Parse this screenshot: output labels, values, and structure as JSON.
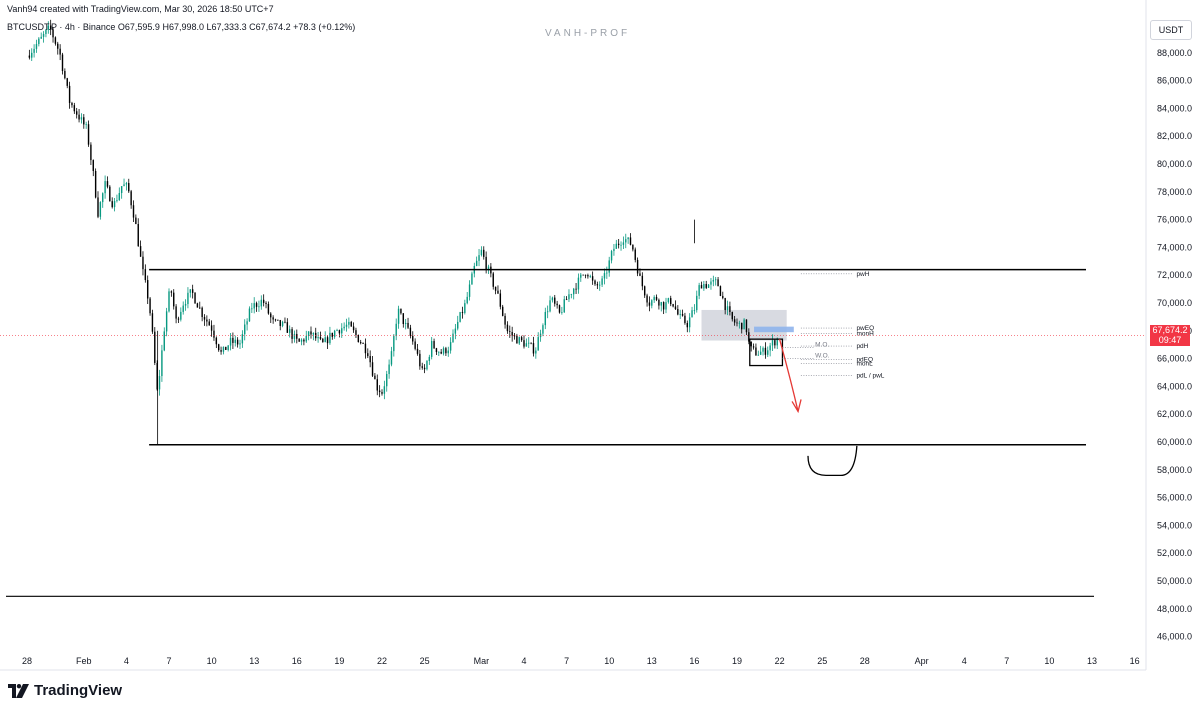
{
  "header": {
    "creator": "Vanh94 created with TradingView.com, Mar 30, 2026 18:50 UTC+7",
    "symbol": "BTCUSDT.P",
    "timeframe": "4h",
    "exchange": "Binance",
    "open": "O67,595.9",
    "high": "H67,998.0",
    "low": "L67,333.3",
    "close": "C67,674.2",
    "change": "+78.3 (+0.12%)"
  },
  "watermark": "VANH-PROF",
  "quote_currency": "USDT",
  "current_price": {
    "value": 67674.2,
    "label": "67,674.2",
    "countdown": "09:47"
  },
  "brand": {
    "name": "TradingView"
  },
  "colors": {
    "up": "#089981",
    "down": "#000000",
    "price_tag": "#f23645",
    "zone_fill": "#d1d4dc",
    "blue_zone": "#8fb4ec",
    "arrow": "#e53935"
  },
  "chart_data": {
    "type": "candlestick",
    "interval": "4h",
    "ylim": [
      44500,
      90000
    ],
    "y_ticks": [
      46000,
      48000,
      50000,
      52000,
      54000,
      56000,
      58000,
      60000,
      62000,
      64000,
      66000,
      68000,
      70000,
      72000,
      74000,
      76000,
      78000,
      80000,
      82000,
      84000,
      86000,
      88000
    ],
    "y_tick_labels": [
      "46,000.0",
      "48,000.0",
      "50,000.0",
      "52,000.0",
      "54,000.0",
      "56,000.0",
      "58,000.0",
      "60,000.0",
      "62,000.0",
      "64,000.0",
      "66,000.0",
      "68,000.0",
      "70,000.0",
      "72,000.0",
      "74,000.0",
      "76,000.0",
      "78,000.0",
      "80,000.0",
      "82,000.0",
      "84,000.0",
      "86,000.0",
      "88,000.0"
    ],
    "x_ticks": [
      {
        "label": "28",
        "day": 0
      },
      {
        "label": "Feb",
        "day": 4
      },
      {
        "label": "4",
        "day": 7
      },
      {
        "label": "7",
        "day": 10
      },
      {
        "label": "10",
        "day": 13
      },
      {
        "label": "13",
        "day": 16
      },
      {
        "label": "16",
        "day": 19
      },
      {
        "label": "19",
        "day": 22
      },
      {
        "label": "22",
        "day": 25
      },
      {
        "label": "25",
        "day": 28
      },
      {
        "label": "Mar",
        "day": 32
      },
      {
        "label": "4",
        "day": 35
      },
      {
        "label": "7",
        "day": 38
      },
      {
        "label": "10",
        "day": 41
      },
      {
        "label": "13",
        "day": 44
      },
      {
        "label": "16",
        "day": 47
      },
      {
        "label": "19",
        "day": 50
      },
      {
        "label": "22",
        "day": 53
      },
      {
        "label": "25",
        "day": 56
      },
      {
        "label": "28",
        "day": 59
      },
      {
        "label": "Apr",
        "day": 63
      },
      {
        "label": "4",
        "day": 66
      },
      {
        "label": "7",
        "day": 69
      },
      {
        "label": "10",
        "day": 72
      },
      {
        "label": "13",
        "day": 75
      },
      {
        "label": "16",
        "day": 78
      }
    ],
    "path_points": [
      {
        "d": 0,
        "p": 87800
      },
      {
        "d": 1,
        "p": 89000
      },
      {
        "d": 1.6,
        "p": 89800
      },
      {
        "d": 2.3,
        "p": 88000
      },
      {
        "d": 3,
        "p": 84500
      },
      {
        "d": 3.6,
        "p": 83500
      },
      {
        "d": 4.2,
        "p": 82500
      },
      {
        "d": 4.7,
        "p": 79000
      },
      {
        "d": 5,
        "p": 76500
      },
      {
        "d": 5.5,
        "p": 78500
      },
      {
        "d": 6.1,
        "p": 77000
      },
      {
        "d": 6.7,
        "p": 78500
      },
      {
        "d": 7.1,
        "p": 78300
      },
      {
        "d": 7.6,
        "p": 76000
      },
      {
        "d": 8.1,
        "p": 72500
      },
      {
        "d": 8.6,
        "p": 70000
      },
      {
        "d": 8.9,
        "p": 67000
      },
      {
        "d": 9.15,
        "p": 63500
      },
      {
        "d": 9.35,
        "p": 65000
      },
      {
        "d": 9.7,
        "p": 68500
      },
      {
        "d": 10.1,
        "p": 71200
      },
      {
        "d": 10.5,
        "p": 68700
      },
      {
        "d": 11,
        "p": 70000
      },
      {
        "d": 11.6,
        "p": 70800
      },
      {
        "d": 12.3,
        "p": 69300
      },
      {
        "d": 13,
        "p": 68200
      },
      {
        "d": 13.7,
        "p": 66300
      },
      {
        "d": 14.3,
        "p": 67200
      },
      {
        "d": 15,
        "p": 67100
      },
      {
        "d": 15.8,
        "p": 69700
      },
      {
        "d": 16.6,
        "p": 70200
      },
      {
        "d": 17.3,
        "p": 68600
      },
      {
        "d": 18.2,
        "p": 68300
      },
      {
        "d": 19.1,
        "p": 67100
      },
      {
        "d": 20,
        "p": 67800
      },
      {
        "d": 20.8,
        "p": 67000
      },
      {
        "d": 21.7,
        "p": 68000
      },
      {
        "d": 22.6,
        "p": 68400
      },
      {
        "d": 23.3,
        "p": 67500
      },
      {
        "d": 24,
        "p": 66500
      },
      {
        "d": 24.6,
        "p": 64000
      },
      {
        "d": 25,
        "p": 63600
      },
      {
        "d": 25.6,
        "p": 65700
      },
      {
        "d": 26.1,
        "p": 69500
      },
      {
        "d": 26.6,
        "p": 68500
      },
      {
        "d": 27.3,
        "p": 66900
      },
      {
        "d": 27.9,
        "p": 64800
      },
      {
        "d": 28.5,
        "p": 67000
      },
      {
        "d": 29.2,
        "p": 66400
      },
      {
        "d": 29.8,
        "p": 66900
      },
      {
        "d": 30.3,
        "p": 68500
      },
      {
        "d": 30.9,
        "p": 70000
      },
      {
        "d": 31.5,
        "p": 72500
      },
      {
        "d": 32,
        "p": 73700
      },
      {
        "d": 32.6,
        "p": 72000
      },
      {
        "d": 33.2,
        "p": 70400
      },
      {
        "d": 33.8,
        "p": 68000
      },
      {
        "d": 34.5,
        "p": 67400
      },
      {
        "d": 35.2,
        "p": 67000
      },
      {
        "d": 35.8,
        "p": 66600
      },
      {
        "d": 36.3,
        "p": 68600
      },
      {
        "d": 36.9,
        "p": 70300
      },
      {
        "d": 37.5,
        "p": 69200
      },
      {
        "d": 38.1,
        "p": 70500
      },
      {
        "d": 38.8,
        "p": 71500
      },
      {
        "d": 39.4,
        "p": 72400
      },
      {
        "d": 40,
        "p": 71100
      },
      {
        "d": 40.6,
        "p": 71600
      },
      {
        "d": 41.3,
        "p": 73900
      },
      {
        "d": 42,
        "p": 74700
      },
      {
        "d": 42.6,
        "p": 74200
      },
      {
        "d": 43.2,
        "p": 71600
      },
      {
        "d": 43.8,
        "p": 70000
      },
      {
        "d": 44.3,
        "p": 70400
      },
      {
        "d": 44.8,
        "p": 69800
      },
      {
        "d": 45.4,
        "p": 70200
      },
      {
        "d": 45.9,
        "p": 69000
      },
      {
        "d": 46.5,
        "p": 68500
      },
      {
        "d": 47,
        "p": 69600
      },
      {
        "d": 47.4,
        "p": 71400
      },
      {
        "d": 48,
        "p": 71300
      },
      {
        "d": 48.6,
        "p": 71500
      },
      {
        "d": 49.1,
        "p": 70000
      },
      {
        "d": 49.6,
        "p": 68800
      },
      {
        "d": 50.1,
        "p": 68400
      },
      {
        "d": 50.6,
        "p": 68500
      },
      {
        "d": 50.9,
        "p": 66700
      },
      {
        "d": 51.4,
        "p": 66400
      },
      {
        "d": 51.9,
        "p": 66500
      },
      {
        "d": 52.4,
        "p": 67000
      },
      {
        "d": 52.9,
        "p": 67500
      }
    ],
    "drawings": {
      "upper_range_level": 72400,
      "lower_range_level": 59800,
      "separator_level": 48900,
      "gray_zone": {
        "from_day": 47.5,
        "to_day": 53.5,
        "low": 67300,
        "high": 69500
      },
      "blue_zone": {
        "from_day": 51.2,
        "to_day": 54,
        "low": 67900,
        "high": 68300
      },
      "consolidation_box": {
        "from_day": 50.9,
        "to_day": 53.2,
        "low": 65500,
        "high": 67400
      },
      "arrow": {
        "from": {
          "day": 53,
          "price": 67400
        },
        "to": {
          "day": 54.3,
          "price": 62200
        }
      },
      "target_curve": {
        "from_day": 55,
        "to_day": 58.3,
        "top": 59000,
        "bottom": 57600
      }
    },
    "levels": [
      {
        "label": "pwH",
        "price": 72100
      },
      {
        "label": "pwEQ",
        "price": 68200
      },
      {
        "label": "monH",
        "price": 67800
      },
      {
        "label": "pdH",
        "price": 66900
      },
      {
        "label": "M.O.",
        "price": 66800
      },
      {
        "label": "W.O.",
        "price": 66000
      },
      {
        "label": "pdEQ",
        "price": 65950
      },
      {
        "label": "monL",
        "price": 65650
      },
      {
        "label": "pdL / pwL",
        "price": 64800
      }
    ]
  }
}
